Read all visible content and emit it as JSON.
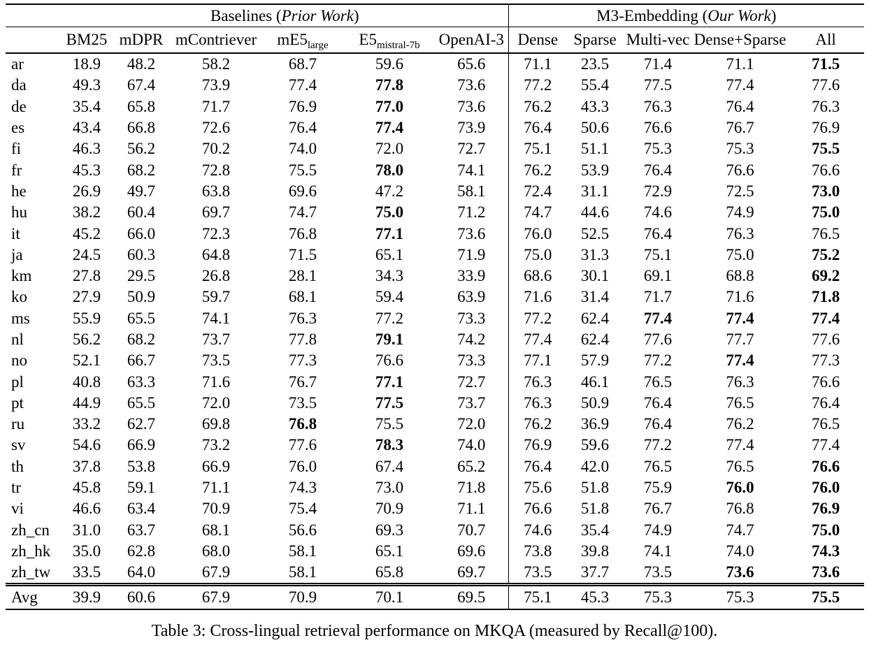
{
  "colors": {
    "text": "#000000",
    "background": "#ffffff",
    "rule": "#000000"
  },
  "caption": "Table 3: Cross-lingual retrieval performance on MKQA (measured by Recall@100).",
  "table": {
    "group_headers": {
      "baselines": {
        "prefix": "Baselines (",
        "italic": "Prior Work",
        "suffix": ")"
      },
      "m3": {
        "prefix": "M3-Embedding (",
        "italic": "Our Work",
        "suffix": ")"
      }
    },
    "columns": [
      {
        "label": "BM25"
      },
      {
        "label": "mDPR"
      },
      {
        "label": "mContriever"
      },
      {
        "label": "mE5",
        "sub": "large"
      },
      {
        "label": "E5",
        "sub": "mistral-7b"
      },
      {
        "label": "OpenAI-3"
      },
      {
        "label": "Dense"
      },
      {
        "label": "Sparse"
      },
      {
        "label": "Multi-vec"
      },
      {
        "label": "Dense+Sparse"
      },
      {
        "label": "All"
      }
    ],
    "rows": [
      {
        "lang": "ar",
        "values": [
          "18.9",
          "48.2",
          "58.2",
          "68.7",
          "59.6",
          "65.6",
          "71.1",
          "23.5",
          "71.4",
          "71.1",
          "71.5"
        ],
        "bold": [
          10
        ]
      },
      {
        "lang": "da",
        "values": [
          "49.3",
          "67.4",
          "73.9",
          "77.4",
          "77.8",
          "73.6",
          "77.2",
          "55.4",
          "77.5",
          "77.4",
          "77.6"
        ],
        "bold": [
          4
        ]
      },
      {
        "lang": "de",
        "values": [
          "35.4",
          "65.8",
          "71.7",
          "76.9",
          "77.0",
          "73.6",
          "76.2",
          "43.3",
          "76.3",
          "76.4",
          "76.3"
        ],
        "bold": [
          4
        ]
      },
      {
        "lang": "es",
        "values": [
          "43.4",
          "66.8",
          "72.6",
          "76.4",
          "77.4",
          "73.9",
          "76.4",
          "50.6",
          "76.6",
          "76.7",
          "76.9"
        ],
        "bold": [
          4
        ]
      },
      {
        "lang": "fi",
        "values": [
          "46.3",
          "56.2",
          "70.2",
          "74.0",
          "72.0",
          "72.7",
          "75.1",
          "51.1",
          "75.3",
          "75.3",
          "75.5"
        ],
        "bold": [
          10
        ]
      },
      {
        "lang": "fr",
        "values": [
          "45.3",
          "68.2",
          "72.8",
          "75.5",
          "78.0",
          "74.1",
          "76.2",
          "53.9",
          "76.4",
          "76.6",
          "76.6"
        ],
        "bold": [
          4
        ]
      },
      {
        "lang": "he",
        "values": [
          "26.9",
          "49.7",
          "63.8",
          "69.6",
          "47.2",
          "58.1",
          "72.4",
          "31.1",
          "72.9",
          "72.5",
          "73.0"
        ],
        "bold": [
          10
        ]
      },
      {
        "lang": "hu",
        "values": [
          "38.2",
          "60.4",
          "69.7",
          "74.7",
          "75.0",
          "71.2",
          "74.7",
          "44.6",
          "74.6",
          "74.9",
          "75.0"
        ],
        "bold": [
          4,
          10
        ]
      },
      {
        "lang": "it",
        "values": [
          "45.2",
          "66.0",
          "72.3",
          "76.8",
          "77.1",
          "73.6",
          "76.0",
          "52.5",
          "76.4",
          "76.3",
          "76.5"
        ],
        "bold": [
          4
        ]
      },
      {
        "lang": "ja",
        "values": [
          "24.5",
          "60.3",
          "64.8",
          "71.5",
          "65.1",
          "71.9",
          "75.0",
          "31.3",
          "75.1",
          "75.0",
          "75.2"
        ],
        "bold": [
          10
        ]
      },
      {
        "lang": "km",
        "values": [
          "27.8",
          "29.5",
          "26.8",
          "28.1",
          "34.3",
          "33.9",
          "68.6",
          "30.1",
          "69.1",
          "68.8",
          "69.2"
        ],
        "bold": [
          10
        ]
      },
      {
        "lang": "ko",
        "values": [
          "27.9",
          "50.9",
          "59.7",
          "68.1",
          "59.4",
          "63.9",
          "71.6",
          "31.4",
          "71.7",
          "71.6",
          "71.8"
        ],
        "bold": [
          10
        ]
      },
      {
        "lang": "ms",
        "values": [
          "55.9",
          "65.5",
          "74.1",
          "76.3",
          "77.2",
          "73.3",
          "77.2",
          "62.4",
          "77.4",
          "77.4",
          "77.4"
        ],
        "bold": [
          8,
          9,
          10
        ]
      },
      {
        "lang": "nl",
        "values": [
          "56.2",
          "68.2",
          "73.7",
          "77.8",
          "79.1",
          "74.2",
          "77.4",
          "62.4",
          "77.6",
          "77.7",
          "77.6"
        ],
        "bold": [
          4
        ]
      },
      {
        "lang": "no",
        "values": [
          "52.1",
          "66.7",
          "73.5",
          "77.3",
          "76.6",
          "73.3",
          "77.1",
          "57.9",
          "77.2",
          "77.4",
          "77.3"
        ],
        "bold": [
          9
        ]
      },
      {
        "lang": "pl",
        "values": [
          "40.8",
          "63.3",
          "71.6",
          "76.7",
          "77.1",
          "72.7",
          "76.3",
          "46.1",
          "76.5",
          "76.3",
          "76.6"
        ],
        "bold": [
          4
        ]
      },
      {
        "lang": "pt",
        "values": [
          "44.9",
          "65.5",
          "72.0",
          "73.5",
          "77.5",
          "73.7",
          "76.3",
          "50.9",
          "76.4",
          "76.5",
          "76.4"
        ],
        "bold": [
          4
        ]
      },
      {
        "lang": "ru",
        "values": [
          "33.2",
          "62.7",
          "69.8",
          "76.8",
          "75.5",
          "72.0",
          "76.2",
          "36.9",
          "76.4",
          "76.2",
          "76.5"
        ],
        "bold": [
          3
        ]
      },
      {
        "lang": "sv",
        "values": [
          "54.6",
          "66.9",
          "73.2",
          "77.6",
          "78.3",
          "74.0",
          "76.9",
          "59.6",
          "77.2",
          "77.4",
          "77.4"
        ],
        "bold": [
          4
        ]
      },
      {
        "lang": "th",
        "values": [
          "37.8",
          "53.8",
          "66.9",
          "76.0",
          "67.4",
          "65.2",
          "76.4",
          "42.0",
          "76.5",
          "76.5",
          "76.6"
        ],
        "bold": [
          10
        ]
      },
      {
        "lang": "tr",
        "values": [
          "45.8",
          "59.1",
          "71.1",
          "74.3",
          "73.0",
          "71.8",
          "75.6",
          "51.8",
          "75.9",
          "76.0",
          "76.0"
        ],
        "bold": [
          9,
          10
        ]
      },
      {
        "lang": "vi",
        "values": [
          "46.6",
          "63.4",
          "70.9",
          "75.4",
          "70.9",
          "71.1",
          "76.6",
          "51.8",
          "76.7",
          "76.8",
          "76.9"
        ],
        "bold": [
          10
        ]
      },
      {
        "lang": "zh_cn",
        "values": [
          "31.0",
          "63.7",
          "68.1",
          "56.6",
          "69.3",
          "70.7",
          "74.6",
          "35.4",
          "74.9",
          "74.7",
          "75.0"
        ],
        "bold": [
          10
        ]
      },
      {
        "lang": "zh_hk",
        "values": [
          "35.0",
          "62.8",
          "68.0",
          "58.1",
          "65.1",
          "69.6",
          "73.8",
          "39.8",
          "74.1",
          "74.0",
          "74.3"
        ],
        "bold": [
          10
        ]
      },
      {
        "lang": "zh_tw",
        "values": [
          "33.5",
          "64.0",
          "67.9",
          "58.1",
          "65.8",
          "69.7",
          "73.5",
          "37.7",
          "73.5",
          "73.6",
          "73.6"
        ],
        "bold": [
          9,
          10
        ]
      }
    ],
    "avg_row": {
      "lang": "Avg",
      "values": [
        "39.9",
        "60.6",
        "67.9",
        "70.9",
        "70.1",
        "69.5",
        "75.1",
        "45.3",
        "75.3",
        "75.3",
        "75.5"
      ],
      "bold": [
        10
      ]
    }
  }
}
